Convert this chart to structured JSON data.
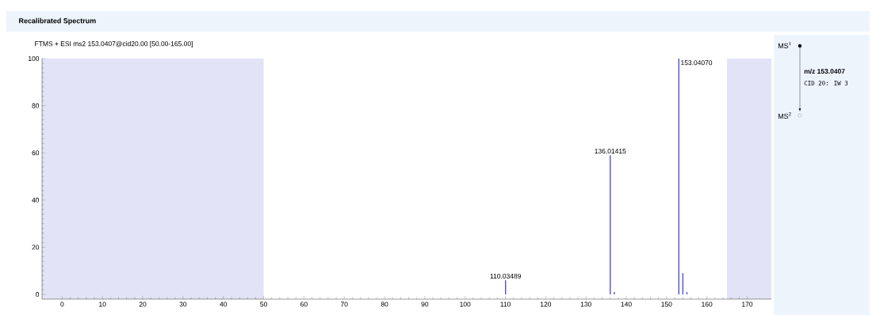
{
  "chart_data": {
    "type": "bar",
    "title": "Recalibrated Spectrum",
    "subtitle": "FTMS + ESI ms2 153.0407@cid20.00 [50.00-165.00]",
    "x": [
      110.03489,
      136.01415,
      137.02,
      153.0407,
      154.04,
      155.04
    ],
    "values": [
      6,
      59,
      1,
      100,
      9,
      1
    ],
    "color": "#5252d0",
    "xlim": [
      -5,
      176
    ],
    "ylim": [
      -2,
      100
    ],
    "xticks": [
      0,
      10,
      20,
      30,
      40,
      50,
      60,
      70,
      80,
      90,
      100,
      110,
      120,
      130,
      140,
      150,
      160,
      170
    ],
    "yticks": [
      0,
      20,
      40,
      60,
      80,
      100
    ],
    "bands": [
      {
        "axis": "x",
        "from": -5,
        "to": 50,
        "color": "#e3e3f7"
      },
      {
        "axis": "x",
        "from": 165,
        "to": 176,
        "color": "#e3e3f7"
      }
    ],
    "annotations": [
      {
        "text": "110.03489",
        "x": 110.03489,
        "y": 6
      },
      {
        "text": "136.01415",
        "x": 136.01415,
        "y": 59
      },
      {
        "text": "153.04070",
        "x": 153.0407,
        "y": 100
      },
      "MS$^{1}$",
      "m/z 153.0407",
      "CID 20: IW 3",
      "MS$^{2}$"
    ]
  }
}
